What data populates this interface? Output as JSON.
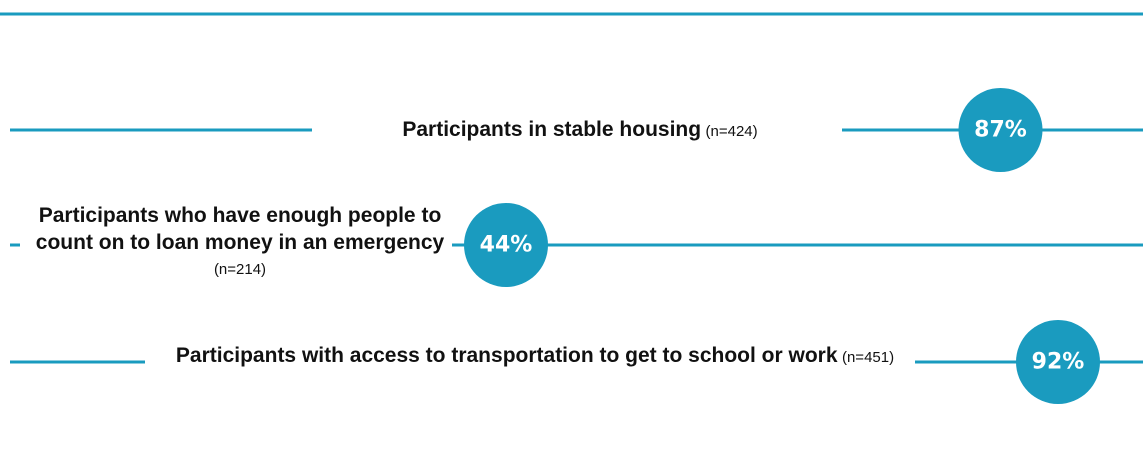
{
  "chart_data": {
    "type": "dot",
    "categories": [
      "Participants in stable housing",
      "Participants who have enough people to count on to loan money in an emergency",
      "Participants with access to transportation to get to school or work"
    ],
    "notes": [
      "(n=424)",
      "(n=214)",
      "(n=451)"
    ],
    "values": [
      87,
      44,
      92
    ],
    "value_labels": [
      "87%",
      "44%",
      "92%"
    ],
    "color": "#1a9bbf"
  }
}
